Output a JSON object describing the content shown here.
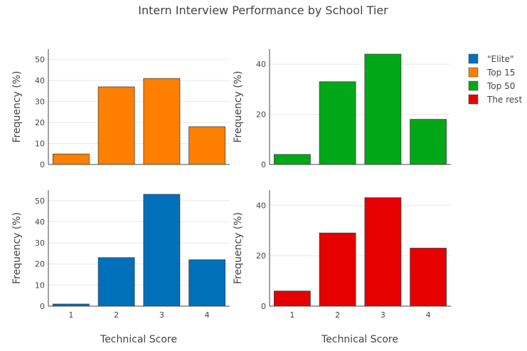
{
  "chart_data": {
    "type": "bar",
    "title": "Intern Interview Performance by School Tier",
    "legend": {
      "placement": "top-right",
      "items": [
        {
          "name": "\"Elite\"",
          "color": "#1f77b4"
        },
        {
          "name": "Top 15",
          "color": "#ff7f0e"
        },
        {
          "name": "Top 50",
          "color": "#2ca02c"
        },
        {
          "name": "The rest",
          "color": "#d62728"
        }
      ]
    },
    "xlabel": "Technical Score",
    "categories": [
      "1",
      "2",
      "3",
      "4"
    ],
    "panels": [
      {
        "series_name": "Top 15",
        "color": "#ff7f00",
        "values": [
          5,
          37,
          41,
          18
        ],
        "ylabel": "Frequency (%)",
        "ylim": [
          0,
          55
        ],
        "yticks": [
          0,
          10,
          20,
          30,
          40,
          50
        ],
        "show_xticks": false
      },
      {
        "series_name": "Top 50",
        "color": "#00a818",
        "values": [
          4,
          33,
          44,
          18
        ],
        "ylabel": "Frequency (%)",
        "ylim": [
          0,
          46
        ],
        "yticks": [
          0,
          20,
          40
        ],
        "show_xticks": false
      },
      {
        "series_name": "\"Elite\"",
        "color": "#0070ba",
        "values": [
          1,
          23,
          53,
          22
        ],
        "ylabel": "Frequency (%)",
        "ylim": [
          0,
          55
        ],
        "yticks": [
          0,
          10,
          20,
          30,
          40,
          50
        ],
        "show_xticks": true
      },
      {
        "series_name": "The rest",
        "color": "#e60000",
        "values": [
          6,
          29,
          43,
          23
        ],
        "ylabel": "Frequency (%)",
        "ylim": [
          0,
          46
        ],
        "yticks": [
          0,
          20,
          40
        ],
        "show_xticks": true
      }
    ],
    "grid": true
  },
  "legend_colors": [
    "#0070ba",
    "#ff7f00",
    "#00a818",
    "#e60000"
  ]
}
